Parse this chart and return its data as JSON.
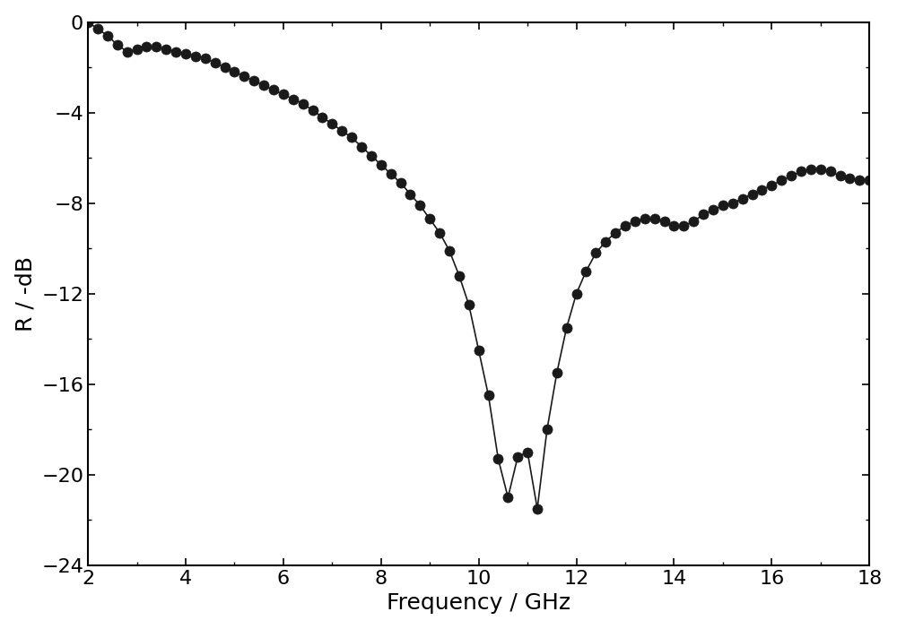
{
  "x": [
    2.0,
    2.2,
    2.4,
    2.6,
    2.8,
    3.0,
    3.2,
    3.4,
    3.6,
    3.8,
    4.0,
    4.2,
    4.4,
    4.6,
    4.8,
    5.0,
    5.2,
    5.4,
    5.6,
    5.8,
    6.0,
    6.2,
    6.4,
    6.6,
    6.8,
    7.0,
    7.2,
    7.4,
    7.6,
    7.8,
    8.0,
    8.2,
    8.4,
    8.6,
    8.8,
    9.0,
    9.2,
    9.4,
    9.6,
    9.8,
    10.0,
    10.2,
    10.4,
    10.6,
    10.8,
    11.0,
    11.2,
    11.4,
    11.6,
    11.8,
    12.0,
    12.2,
    12.4,
    12.6,
    12.8,
    13.0,
    13.2,
    13.4,
    13.6,
    13.8,
    14.0,
    14.2,
    14.4,
    14.6,
    14.8,
    15.0,
    15.2,
    15.4,
    15.6,
    15.8,
    16.0,
    16.2,
    16.4,
    16.6,
    16.8,
    17.0,
    17.2,
    17.4,
    17.6,
    17.8,
    18.0
  ],
  "y": [
    0.0,
    -0.3,
    -0.6,
    -1.0,
    -1.3,
    -1.2,
    -1.1,
    -1.1,
    -1.2,
    -1.3,
    -1.4,
    -1.5,
    -1.6,
    -1.8,
    -2.0,
    -2.2,
    -2.4,
    -2.6,
    -2.8,
    -3.0,
    -3.2,
    -3.4,
    -3.6,
    -3.9,
    -4.2,
    -4.5,
    -4.8,
    -5.1,
    -5.5,
    -5.9,
    -6.3,
    -6.7,
    -7.1,
    -7.6,
    -8.1,
    -8.7,
    -9.3,
    -10.1,
    -11.2,
    -12.5,
    -14.5,
    -16.5,
    -19.3,
    -21.0,
    -19.2,
    -19.0,
    -21.5,
    -18.0,
    -15.5,
    -13.5,
    -12.0,
    -11.0,
    -10.2,
    -9.7,
    -9.3,
    -9.0,
    -8.8,
    -8.7,
    -8.7,
    -8.8,
    -9.0,
    -9.0,
    -8.8,
    -8.5,
    -8.3,
    -8.1,
    -8.0,
    -7.8,
    -7.6,
    -7.4,
    -7.2,
    -7.0,
    -6.8,
    -6.6,
    -6.5,
    -6.5,
    -6.6,
    -6.8,
    -6.9,
    -7.0,
    -7.0
  ],
  "xlabel": "Frequency / GHz",
  "ylabel": "R / -dB",
  "xlim": [
    2,
    18
  ],
  "ylim": [
    -24,
    0
  ],
  "xticks": [
    2,
    4,
    6,
    8,
    10,
    12,
    14,
    16,
    18
  ],
  "yticks": [
    0,
    -4,
    -8,
    -12,
    -16,
    -20,
    -24
  ],
  "line_color": "#1a1a1a",
  "marker_color": "#1a1a1a",
  "marker_size": 8,
  "line_width": 1.2,
  "bg_color": "#ffffff",
  "xlabel_fontsize": 18,
  "ylabel_fontsize": 18,
  "tick_fontsize": 16
}
